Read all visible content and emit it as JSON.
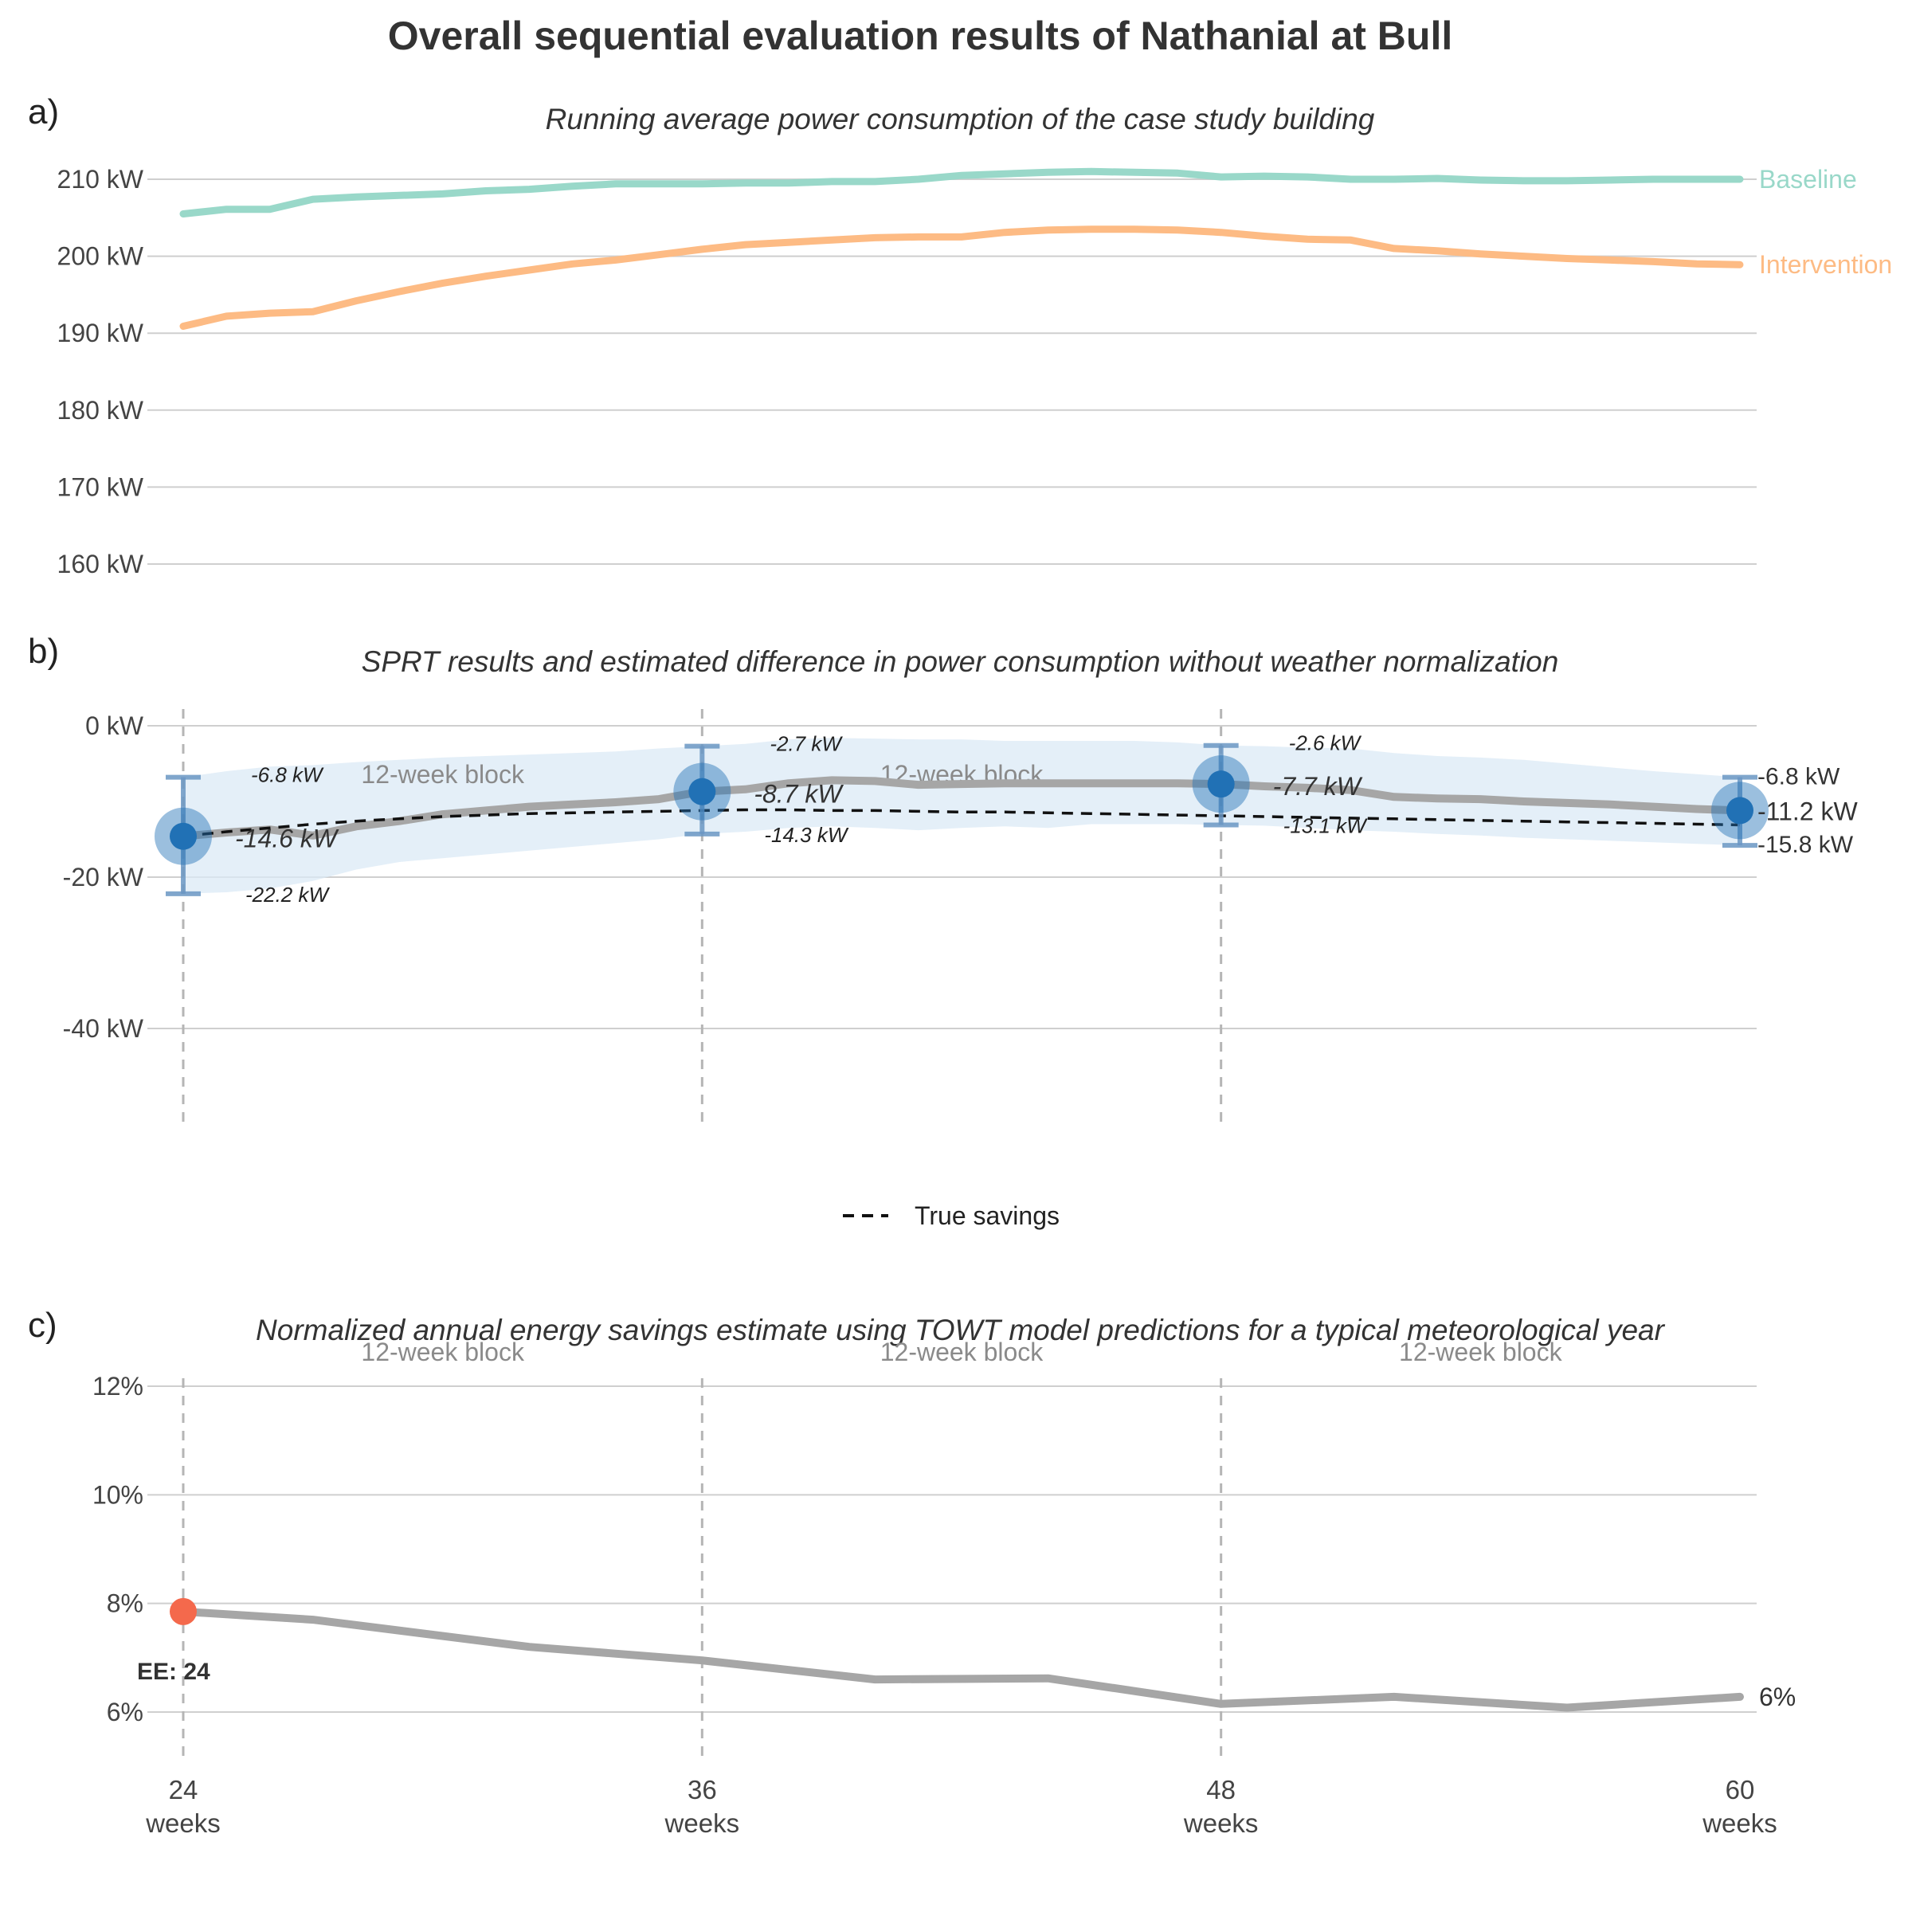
{
  "title": "Overall sequential evaluation results of Nathanial at Bull",
  "panel_labels": [
    "a)",
    "b)",
    "c)"
  ],
  "x_ticks": [
    {
      "value": 24,
      "label": "24",
      "sub": "weeks"
    },
    {
      "value": 36,
      "label": "36",
      "sub": "weeks"
    },
    {
      "value": 48,
      "label": "48",
      "sub": "weeks"
    },
    {
      "value": 60,
      "label": "60",
      "sub": "weeks"
    }
  ],
  "block_label": "12-week block",
  "colors": {
    "baseline": "#99d8c9",
    "intervention": "#fdbb84",
    "estimate": "#a6a6a6",
    "sprt_point": "#2171b5",
    "band": "#dbe9f6",
    "ee_point": "#f4694c"
  },
  "chart_data": [
    {
      "type": "line",
      "id": "a",
      "subtitle": "Running average power consumption of the case study building",
      "y_ticks": [
        "160 kW",
        "170 kW",
        "180 kW",
        "190 kW",
        "200 kW",
        "210 kW"
      ],
      "y_tick_values": [
        160,
        170,
        180,
        190,
        200,
        210
      ],
      "ylim": [
        158,
        215
      ],
      "xlim": [
        24,
        60
      ],
      "x": [
        24,
        25,
        26,
        27,
        28,
        29,
        30,
        31,
        32,
        33,
        34,
        35,
        36,
        37,
        38,
        39,
        40,
        41,
        42,
        43,
        44,
        45,
        46,
        47,
        48,
        49,
        50,
        51,
        52,
        53,
        54,
        55,
        56,
        57,
        58,
        59,
        60
      ],
      "series": [
        {
          "name": "Baseline",
          "values": [
            205.5,
            206.1,
            206.1,
            207.4,
            207.7,
            207.9,
            208.1,
            208.5,
            208.7,
            209.1,
            209.4,
            209.4,
            209.4,
            209.5,
            209.5,
            209.7,
            209.7,
            210.0,
            210.5,
            210.7,
            210.9,
            211.0,
            210.9,
            210.8,
            210.3,
            210.4,
            210.3,
            210.0,
            210.0,
            210.1,
            209.9,
            209.8,
            209.8,
            209.9,
            210.0,
            210.0,
            210.0
          ]
        },
        {
          "name": "Intervention",
          "values": [
            190.9,
            192.2,
            192.6,
            192.8,
            194.2,
            195.4,
            196.5,
            197.4,
            198.2,
            199.0,
            199.5,
            200.2,
            200.9,
            201.5,
            201.8,
            202.1,
            202.4,
            202.5,
            202.5,
            203.1,
            203.4,
            203.5,
            203.5,
            203.4,
            203.1,
            202.6,
            202.2,
            202.1,
            201.0,
            200.7,
            200.3,
            200.0,
            199.7,
            199.5,
            199.3,
            199.0,
            198.9
          ]
        }
      ]
    },
    {
      "type": "line",
      "id": "b",
      "subtitle": "SPRT results and estimated difference in power consumption without weather normalization",
      "y_ticks": [
        "-40 kW",
        "-20 kW",
        "0 kW"
      ],
      "y_tick_values": [
        -40,
        -20,
        0
      ],
      "ylim": [
        -53,
        3
      ],
      "xlim": [
        24,
        60
      ],
      "x": [
        24,
        25,
        26,
        27,
        28,
        29,
        30,
        31,
        32,
        33,
        34,
        35,
        36,
        37,
        38,
        39,
        40,
        41,
        42,
        43,
        44,
        45,
        46,
        47,
        48,
        49,
        50,
        51,
        52,
        53,
        54,
        55,
        56,
        57,
        58,
        59,
        60
      ],
      "estimate": [
        -14.6,
        -14.1,
        -13.7,
        -14.5,
        -13.3,
        -12.6,
        -11.7,
        -11.2,
        -10.7,
        -10.4,
        -10.1,
        -9.7,
        -8.7,
        -8.4,
        -7.6,
        -7.2,
        -7.3,
        -7.8,
        -7.7,
        -7.6,
        -7.6,
        -7.6,
        -7.6,
        -7.6,
        -7.7,
        -8.0,
        -8.2,
        -8.5,
        -9.4,
        -9.6,
        -9.7,
        -10.0,
        -10.2,
        -10.4,
        -10.7,
        -11.0,
        -11.2
      ],
      "band_upper": [
        -6.8,
        -6.0,
        -5.4,
        -5.2,
        -4.8,
        -4.5,
        -4.2,
        -4.0,
        -3.8,
        -3.6,
        -3.4,
        -3.0,
        -2.7,
        -2.4,
        -1.8,
        -1.6,
        -1.7,
        -1.8,
        -1.8,
        -2.0,
        -2.0,
        -2.0,
        -2.0,
        -2.2,
        -2.6,
        -2.7,
        -2.9,
        -3.0,
        -3.6,
        -4.0,
        -4.2,
        -4.5,
        -5.0,
        -5.5,
        -6.0,
        -6.4,
        -6.8
      ],
      "band_lower": [
        -22.2,
        -22.0,
        -21.5,
        -20.5,
        -19.0,
        -18.0,
        -17.5,
        -17.0,
        -16.5,
        -16.0,
        -15.5,
        -15.0,
        -14.3,
        -14.0,
        -13.5,
        -13.3,
        -13.5,
        -13.8,
        -13.5,
        -13.3,
        -13.5,
        -13.0,
        -13.0,
        -13.0,
        -13.1,
        -13.2,
        -13.5,
        -13.8,
        -14.0,
        -14.3,
        -14.5,
        -14.8,
        -15.0,
        -15.2,
        -15.4,
        -15.6,
        -15.8
      ],
      "true_savings": [
        -14.6,
        -14.0,
        -13.5,
        -13.0,
        -12.6,
        -12.3,
        -12.0,
        -11.8,
        -11.6,
        -11.5,
        -11.4,
        -11.3,
        -11.2,
        -11.1,
        -11.1,
        -11.2,
        -11.2,
        -11.3,
        -11.4,
        -11.4,
        -11.5,
        -11.6,
        -11.7,
        -11.8,
        -11.9,
        -12.0,
        -12.1,
        -12.2,
        -12.3,
        -12.4,
        -12.5,
        -12.6,
        -12.7,
        -12.8,
        -12.9,
        -13.0,
        -13.1
      ],
      "sprt_points": [
        {
          "x": 24,
          "estimate": -14.6,
          "upper": -6.8,
          "lower": -22.2,
          "estimate_label": "-14.6 kW",
          "upper_label": "-6.8 kW",
          "lower_label": "-22.2 kW"
        },
        {
          "x": 36,
          "estimate": -8.7,
          "upper": -2.7,
          "lower": -14.3,
          "estimate_label": "-8.7 kW",
          "upper_label": "-2.7 kW",
          "lower_label": "-14.3 kW"
        },
        {
          "x": 48,
          "estimate": -7.7,
          "upper": -2.6,
          "lower": -13.1,
          "estimate_label": "-7.7 kW",
          "upper_label": "-2.6 kW",
          "lower_label": "-13.1 kW"
        },
        {
          "x": 60,
          "estimate": -11.2,
          "upper": -6.8,
          "lower": -15.8,
          "estimate_label": "-11.2 kW",
          "upper_label": "-6.8 kW",
          "lower_label": "-15.8 kW"
        }
      ],
      "legend": {
        "label": "True savings"
      }
    },
    {
      "type": "line",
      "id": "c",
      "subtitle": "Normalized annual energy savings estimate using TOWT model predictions for a typical meteorological year",
      "y_ticks": [
        "6%",
        "8%",
        "10%",
        "12%"
      ],
      "y_tick_values": [
        6,
        8,
        10,
        12
      ],
      "ylim": [
        4.5,
        12.5
      ],
      "xlim": [
        24,
        60
      ],
      "x": [
        24,
        27,
        32,
        36,
        40,
        44,
        48,
        52,
        56,
        60
      ],
      "values": [
        7.85,
        7.7,
        7.2,
        6.95,
        6.6,
        6.62,
        6.15,
        6.28,
        6.08,
        6.28
      ],
      "ee_point": {
        "x": 24,
        "y": 7.85,
        "label": "EE: 24"
      },
      "end_label": "6%"
    }
  ]
}
